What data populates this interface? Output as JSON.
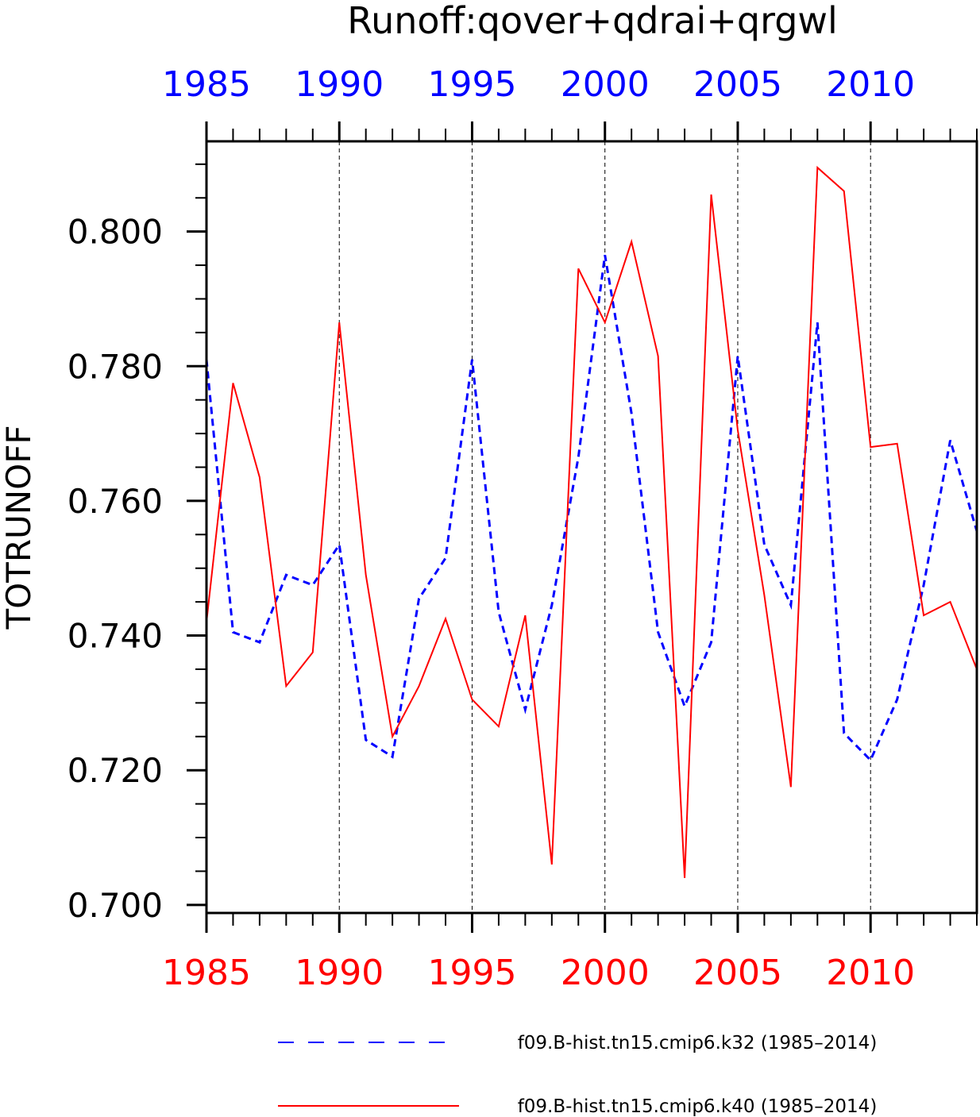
{
  "chart_data": {
    "type": "line",
    "title": "Runoff:qover+qdrai+qrgwl",
    "ylabel": "TOTRUNOFF",
    "xlabel": "",
    "xlim": [
      1985,
      2014
    ],
    "ylim": [
      0.6988,
      0.8134
    ],
    "x_ticks": [
      "1985",
      "1990",
      "1995",
      "2000",
      "2005",
      "2010"
    ],
    "y_ticks": [
      "0.700",
      "0.720",
      "0.740",
      "0.760",
      "0.780",
      "0.800"
    ],
    "grid": "vertical dashed lines at major year ticks",
    "legend_position": "bottom",
    "x": [
      1985,
      1986,
      1987,
      1988,
      1989,
      1990,
      1991,
      1992,
      1993,
      1994,
      1995,
      1996,
      1997,
      1998,
      1999,
      2000,
      2001,
      2002,
      2003,
      2004,
      2005,
      2006,
      2007,
      2008,
      2009,
      2010,
      2011,
      2012,
      2013,
      2014
    ],
    "series": [
      {
        "name": "f09.B-hist.tn15.cmip6.k32 (1985–2014)",
        "color": "#0000ff",
        "style": "dashed",
        "values": [
          0.781,
          0.7405,
          0.739,
          0.749,
          0.7475,
          0.7535,
          0.7245,
          0.722,
          0.7455,
          0.7515,
          0.781,
          0.7435,
          0.729,
          0.7445,
          0.7665,
          0.7965,
          0.773,
          0.7405,
          0.7295,
          0.739,
          0.7815,
          0.7535,
          0.7445,
          0.7865,
          0.7255,
          0.7215,
          0.7305,
          0.7475,
          0.769,
          0.7555
        ]
      },
      {
        "name": "f09.B-hist.tn15.cmip6.k40 (1985–2014)",
        "color": "#ff0000",
        "style": "solid",
        "values": [
          0.742,
          0.7775,
          0.7635,
          0.7325,
          0.7375,
          0.7865,
          0.749,
          0.725,
          0.7325,
          0.7425,
          0.7305,
          0.7265,
          0.743,
          0.706,
          0.7945,
          0.7865,
          0.7985,
          0.7815,
          0.704,
          0.8055,
          0.7705,
          0.746,
          0.7175,
          0.8095,
          0.806,
          0.768,
          0.7685,
          0.743,
          0.745,
          0.735
        ]
      }
    ]
  }
}
